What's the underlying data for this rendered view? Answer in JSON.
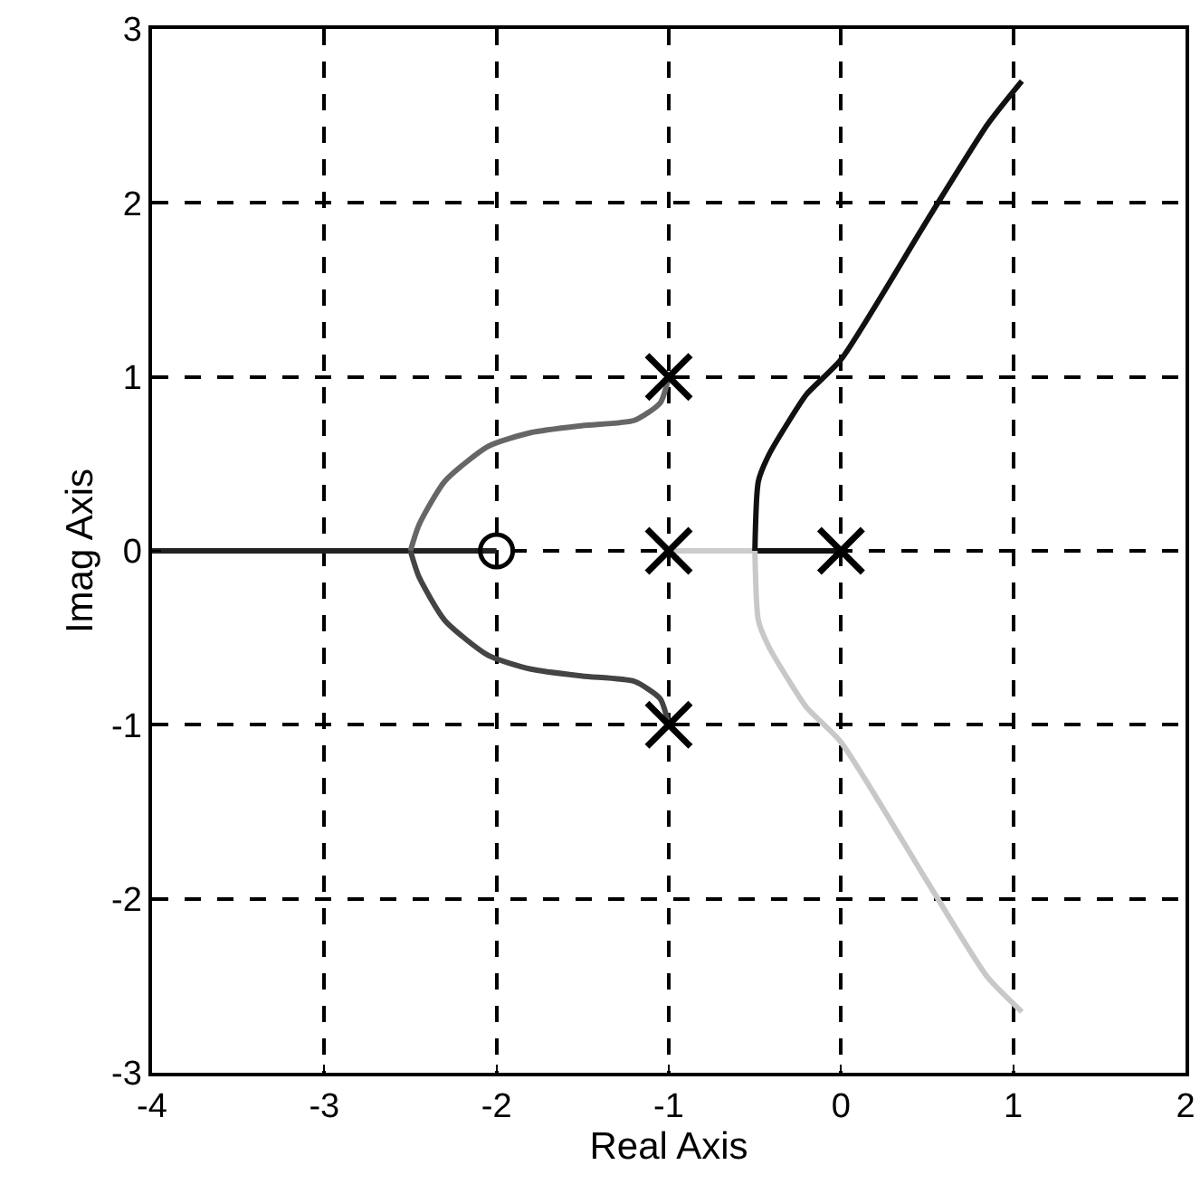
{
  "chart_data": {
    "type": "line",
    "xlabel": "Real Axis",
    "ylabel": "Imag Axis",
    "xlim": [
      -4,
      2
    ],
    "ylim": [
      -3,
      3
    ],
    "xticks": [
      -4,
      -3,
      -2,
      -1,
      0,
      1,
      2
    ],
    "yticks": [
      -3,
      -2,
      -1,
      0,
      1,
      2,
      3
    ],
    "grid": true,
    "line_style": "solid",
    "series": [
      {
        "color": "#222222",
        "x": [
          -4,
          -3,
          -2.5,
          -2
        ],
        "values": [
          0,
          0,
          0,
          0
        ]
      },
      {
        "color": "#666666",
        "x": [
          -1,
          -1.05,
          -1.2,
          -1.5,
          -1.8,
          -2.05,
          -2.3,
          -2.45,
          -2.5
        ],
        "values": [
          1,
          0.85,
          0.75,
          0.72,
          0.68,
          0.6,
          0.4,
          0.15,
          0
        ]
      },
      {
        "color": "#444444",
        "x": [
          -2.5,
          -2.45,
          -2.3,
          -2.05,
          -1.8,
          -1.5,
          -1.2,
          -1.05,
          -1
        ],
        "values": [
          0,
          -0.15,
          -0.4,
          -0.6,
          -0.68,
          -0.72,
          -0.75,
          -0.85,
          -1
        ]
      },
      {
        "color": "#cccccc",
        "x": [
          -1,
          -0.5
        ],
        "values": [
          0,
          0
        ]
      },
      {
        "color": "#111111",
        "x": [
          0,
          -0.5
        ],
        "values": [
          0,
          0
        ]
      },
      {
        "color": "#111111",
        "x": [
          -0.5,
          -0.48,
          -0.42,
          -0.3,
          -0.2,
          0,
          0.5,
          0.85,
          1.05
        ],
        "values": [
          0,
          0.4,
          0.55,
          0.75,
          0.9,
          1.1,
          1.9,
          2.45,
          2.7
        ]
      },
      {
        "color": "#c8c8c8",
        "x": [
          -0.5,
          -0.48,
          -0.42,
          -0.3,
          -0.2,
          0,
          0.5,
          0.85,
          1.05
        ],
        "values": [
          0,
          -0.4,
          -0.55,
          -0.75,
          -0.9,
          -1.1,
          -1.9,
          -2.45,
          -2.65
        ]
      },
      {
        "type": "scatter",
        "marker": "cross",
        "color": "#000000",
        "x": [
          -1,
          -1,
          -1,
          0
        ],
        "values": [
          1,
          0,
          -1,
          0
        ]
      },
      {
        "type": "scatter",
        "marker": "circle",
        "color": "#000000",
        "x": [
          -2
        ],
        "values": [
          0
        ]
      }
    ]
  }
}
